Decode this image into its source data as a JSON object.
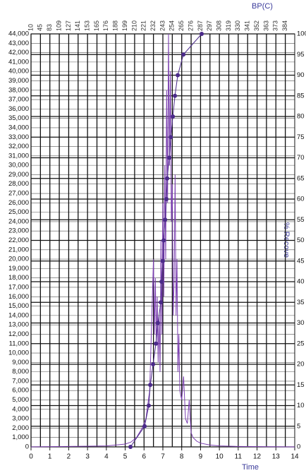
{
  "chart_data": {
    "type": "line",
    "x_label": "Time",
    "x2_label": "BP(C)",
    "y2_label": "% Recove",
    "xlim": [
      0,
      14
    ],
    "xticks": [
      0,
      1,
      2,
      3,
      4,
      5,
      6,
      7,
      8,
      9,
      10,
      11,
      12,
      13,
      14
    ],
    "x2ticks": [
      {
        "value": 0,
        "label": "10"
      },
      {
        "value": 0.5,
        "label": "45"
      },
      {
        "value": 1,
        "label": "83"
      },
      {
        "value": 1.5,
        "label": "109"
      },
      {
        "value": 2,
        "label": "127"
      },
      {
        "value": 2.5,
        "label": "141"
      },
      {
        "value": 3,
        "label": "153"
      },
      {
        "value": 3.5,
        "label": "165"
      },
      {
        "value": 4,
        "label": "176"
      },
      {
        "value": 4.5,
        "label": "188"
      },
      {
        "value": 5,
        "label": "199"
      },
      {
        "value": 5.5,
        "label": "210"
      },
      {
        "value": 6,
        "label": "221"
      },
      {
        "value": 6.5,
        "label": "232"
      },
      {
        "value": 7,
        "label": "243"
      },
      {
        "value": 7.5,
        "label": "254"
      },
      {
        "value": 8,
        "label": "265"
      },
      {
        "value": 8.5,
        "label": "276"
      },
      {
        "value": 9,
        "label": "287"
      },
      {
        "value": 9.5,
        "label": "297"
      },
      {
        "value": 10,
        "label": "308"
      },
      {
        "value": 10.5,
        "label": "319"
      },
      {
        "value": 11,
        "label": "330"
      },
      {
        "value": 11.5,
        "label": "341"
      },
      {
        "value": 12,
        "label": "352"
      },
      {
        "value": 12.5,
        "label": "363"
      },
      {
        "value": 13,
        "label": "373"
      },
      {
        "value": 13.5,
        "label": "384"
      }
    ],
    "ylim": [
      0,
      44000
    ],
    "yticks": [
      0,
      {
        "value": 1000,
        "label": "1,000"
      },
      {
        "value": 2000,
        "label": "2,000"
      },
      {
        "value": 3000,
        "label": "3,000"
      },
      {
        "value": 4000,
        "label": "4,000"
      },
      {
        "value": 5000,
        "label": "5,000"
      },
      {
        "value": 6000,
        "label": "6,000"
      },
      {
        "value": 7000,
        "label": "7,000"
      },
      {
        "value": 8000,
        "label": "8,000"
      },
      {
        "value": 9000,
        "label": "9,000"
      },
      {
        "value": 10000,
        "label": "10,000"
      },
      {
        "value": 11000,
        "label": "11,000"
      },
      {
        "value": 12000,
        "label": "12,000"
      },
      {
        "value": 13000,
        "label": "13,000"
      },
      {
        "value": 14000,
        "label": "14,000"
      },
      {
        "value": 15000,
        "label": "15,000"
      },
      {
        "value": 16000,
        "label": "16,000"
      },
      {
        "value": 17000,
        "label": "17,000"
      },
      {
        "value": 18000,
        "label": "18,000"
      },
      {
        "value": 19000,
        "label": "19,000"
      },
      {
        "value": 20000,
        "label": "20,000"
      },
      {
        "value": 21000,
        "label": "21,000"
      },
      {
        "value": 22000,
        "label": "22,000"
      },
      {
        "value": 23000,
        "label": "23,000"
      },
      {
        "value": 24000,
        "label": "24,000"
      },
      {
        "value": 25000,
        "label": "25,000"
      },
      {
        "value": 26000,
        "label": "26,000"
      },
      {
        "value": 27000,
        "label": "27,000"
      },
      {
        "value": 28000,
        "label": "28,000"
      },
      {
        "value": 29000,
        "label": "29,000"
      },
      {
        "value": 30000,
        "label": "30,000"
      },
      {
        "value": 31000,
        "label": "31,000"
      },
      {
        "value": 32000,
        "label": "32,000"
      },
      {
        "value": 33000,
        "label": "33,000"
      },
      {
        "value": 34000,
        "label": "34,000"
      },
      {
        "value": 35000,
        "label": "35,000"
      },
      {
        "value": 36000,
        "label": "36,000"
      },
      {
        "value": 37000,
        "label": "37,000"
      },
      {
        "value": 38000,
        "label": "38,000"
      },
      {
        "value": 39000,
        "label": "39,000"
      },
      {
        "value": 40000,
        "label": "40,000"
      },
      {
        "value": 41000,
        "label": "41,000"
      },
      {
        "value": 42000,
        "label": "42,000"
      },
      {
        "value": 43000,
        "label": "43,000"
      },
      {
        "value": 44000,
        "label": "44,000"
      }
    ],
    "y2lim": [
      0,
      100
    ],
    "y2ticks": [
      0,
      5,
      10,
      15,
      20,
      25,
      30,
      35,
      40,
      45,
      50,
      55,
      60,
      65,
      70,
      75,
      80,
      85,
      90,
      95,
      100
    ],
    "grid": true,
    "series": [
      {
        "color": "#7b3fb0",
        "x": [
          0,
          4,
          4.5,
          5,
          5.3,
          5.6,
          5.9,
          6.1,
          6.3,
          6.4,
          6.5,
          6.55,
          6.6,
          6.65,
          6.7,
          6.75,
          6.8,
          6.85,
          6.9,
          6.95,
          7,
          7.05,
          7.1,
          7.15,
          7.2,
          7.25,
          7.3,
          7.35,
          7.4,
          7.45,
          7.5,
          7.55,
          7.6,
          7.65,
          7.7,
          7.75,
          7.8,
          7.85,
          7.9,
          8,
          8.1,
          8.2,
          8.3,
          8.4,
          8.5,
          8.6,
          8.8,
          9,
          9.5,
          10,
          11,
          14
        ],
        "values": [
          0,
          100,
          200,
          300,
          500,
          1000,
          2000,
          3000,
          6000,
          13000,
          20000,
          12000,
          18000,
          11000,
          16000,
          9000,
          14000,
          8000,
          22000,
          12000,
          26000,
          16000,
          30000,
          20000,
          38000,
          26000,
          44000,
          30000,
          40000,
          24000,
          28000,
          14000,
          18000,
          29000,
          14000,
          20000,
          8000,
          12000,
          6000,
          5000,
          7500,
          3000,
          2500,
          5000,
          1500,
          1000,
          600,
          400,
          200,
          100,
          50,
          0
        ]
      },
      {
        "color": "#4b2a8a",
        "axis": "y2",
        "markers": true,
        "x": [
          5.28,
          6.03,
          6.25,
          6.33,
          6.48,
          6.63,
          6.74,
          6.89,
          6.93,
          7.0,
          7.04,
          7.12,
          7.19,
          7.23,
          7.34,
          7.42,
          7.53,
          7.64,
          7.79,
          8.09,
          9.06
        ],
        "values": [
          0,
          5,
          10,
          15,
          20,
          25,
          30,
          35,
          40,
          45,
          50,
          55,
          60,
          65,
          70,
          75,
          80,
          85,
          90,
          95,
          100
        ]
      }
    ]
  }
}
